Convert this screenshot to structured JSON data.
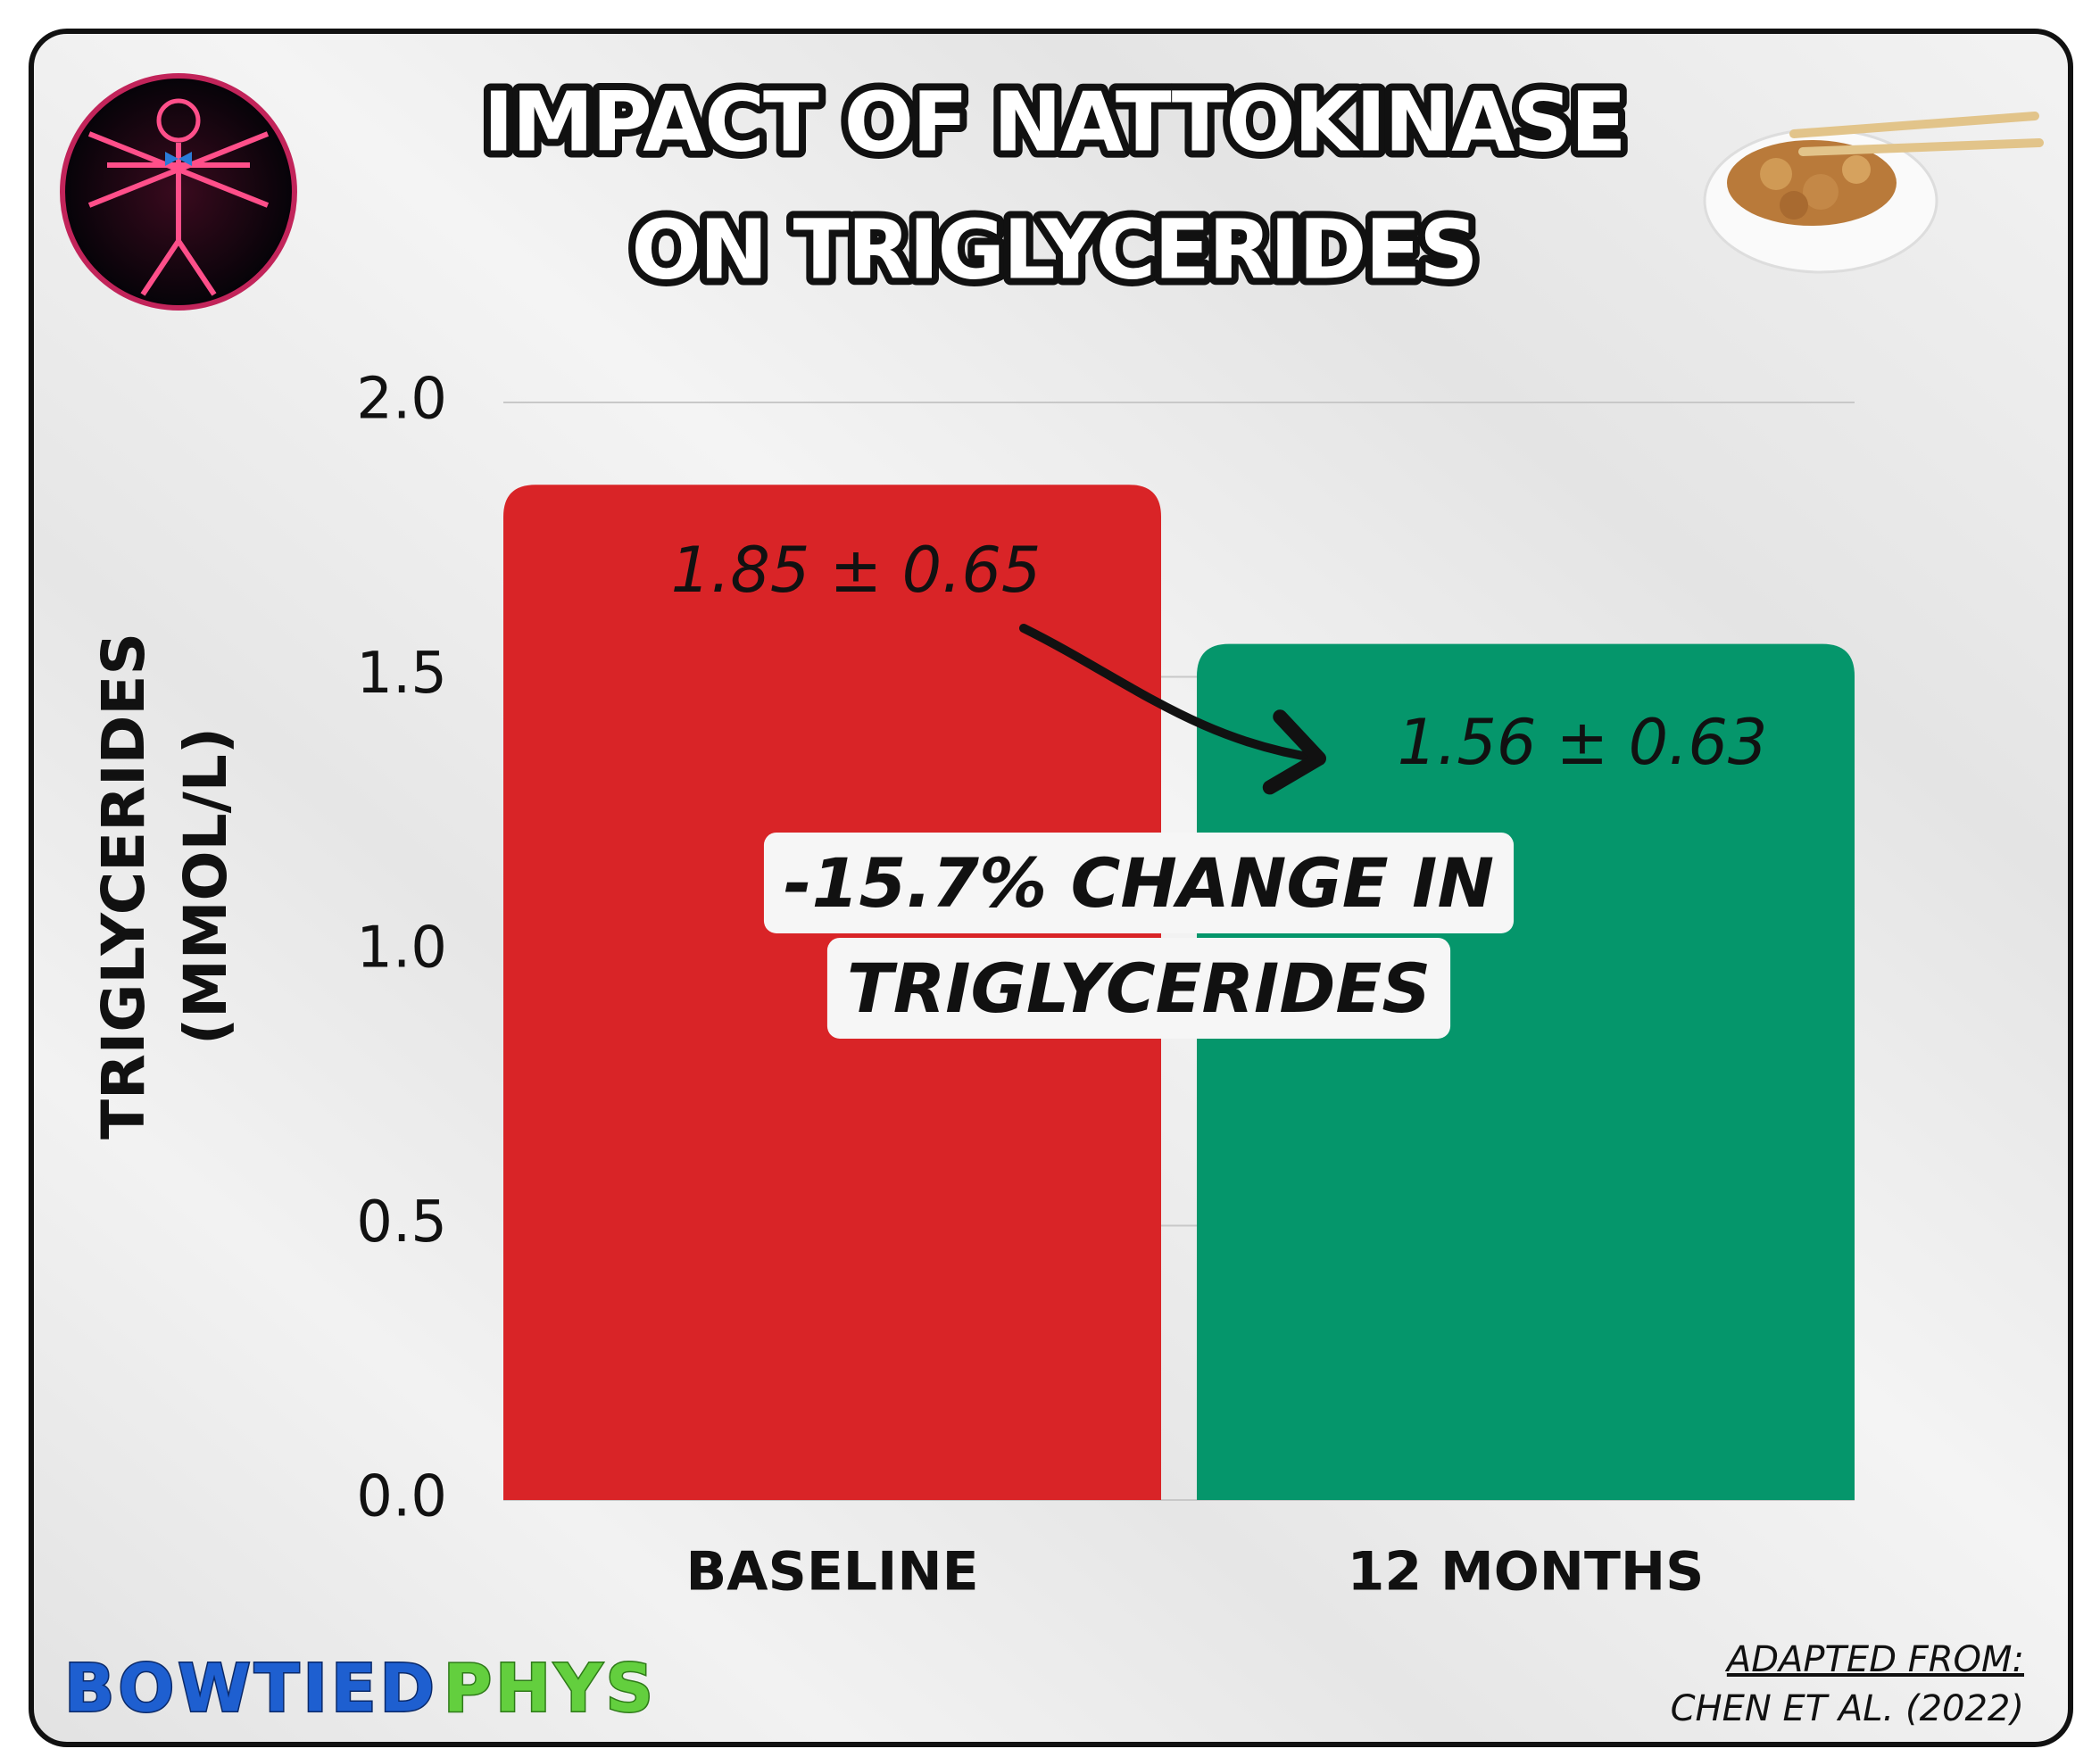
{
  "chart_data": {
    "type": "bar",
    "title": [
      "IMPACT OF NATTOKINASE",
      "ON TRIGLYCERIDES"
    ],
    "y_label": [
      "TRIGLYCERIDES",
      "(MMOL/L)"
    ],
    "categories": [
      "BASELINE",
      "12 MONTHS"
    ],
    "values": [
      1.85,
      1.56
    ],
    "value_labels": [
      "1.85 ± 0.65",
      "1.56 ± 0.63"
    ],
    "colors": [
      "#d92427",
      "#05966b"
    ],
    "ylim": [
      0,
      2
    ],
    "yticks": [
      {
        "value": 0,
        "label": "0.0"
      },
      0.5,
      {
        "value": 1,
        "label": "1.0"
      },
      1.5,
      {
        "value": 2,
        "label": "2.0"
      }
    ],
    "grid": true,
    "annotation": [
      "-15.7% CHANGE IN",
      "TRIGLYCERIDES"
    ],
    "brand": [
      "BOWTIED",
      "PHYS"
    ],
    "source": [
      "ADAPTED FROM:",
      "CHEN ET AL. (2022)"
    ]
  }
}
